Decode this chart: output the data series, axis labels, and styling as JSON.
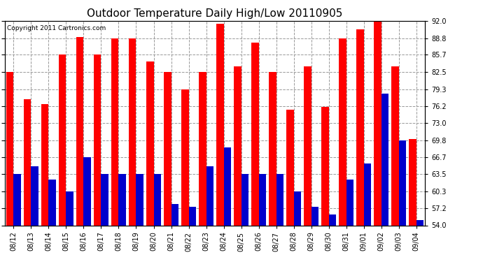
{
  "title": "Outdoor Temperature Daily High/Low 20110905",
  "copyright": "Copyright 2011 Cartronics.com",
  "dates": [
    "08/12",
    "08/13",
    "08/14",
    "08/15",
    "08/16",
    "08/17",
    "08/18",
    "08/19",
    "08/20",
    "08/21",
    "08/22",
    "08/23",
    "08/24",
    "08/25",
    "08/26",
    "08/27",
    "08/28",
    "08/29",
    "08/30",
    "08/31",
    "09/01",
    "09/02",
    "09/03",
    "09/04"
  ],
  "highs": [
    82.5,
    77.5,
    76.5,
    85.7,
    89.0,
    85.7,
    88.8,
    88.8,
    84.5,
    82.5,
    79.3,
    82.5,
    91.5,
    83.5,
    88.0,
    82.5,
    75.5,
    83.5,
    76.0,
    88.8,
    90.5,
    92.0,
    83.5,
    70.0
  ],
  "lows": [
    63.5,
    65.0,
    62.5,
    60.3,
    66.7,
    63.5,
    63.5,
    63.5,
    63.5,
    58.0,
    57.5,
    65.0,
    68.5,
    63.5,
    63.5,
    63.5,
    60.3,
    57.5,
    56.0,
    62.5,
    65.5,
    78.5,
    69.8,
    55.0
  ],
  "high_color": "#ff0000",
  "low_color": "#0000cc",
  "bg_color": "#ffffff",
  "grid_color": "#999999",
  "yticks": [
    54.0,
    57.2,
    60.3,
    63.5,
    66.7,
    69.8,
    73.0,
    76.2,
    79.3,
    82.5,
    85.7,
    88.8,
    92.0
  ],
  "ymin": 54.0,
  "ymax": 92.0,
  "title_fontsize": 11,
  "tick_fontsize": 7,
  "copyright_fontsize": 6.5,
  "bar_width": 0.42
}
